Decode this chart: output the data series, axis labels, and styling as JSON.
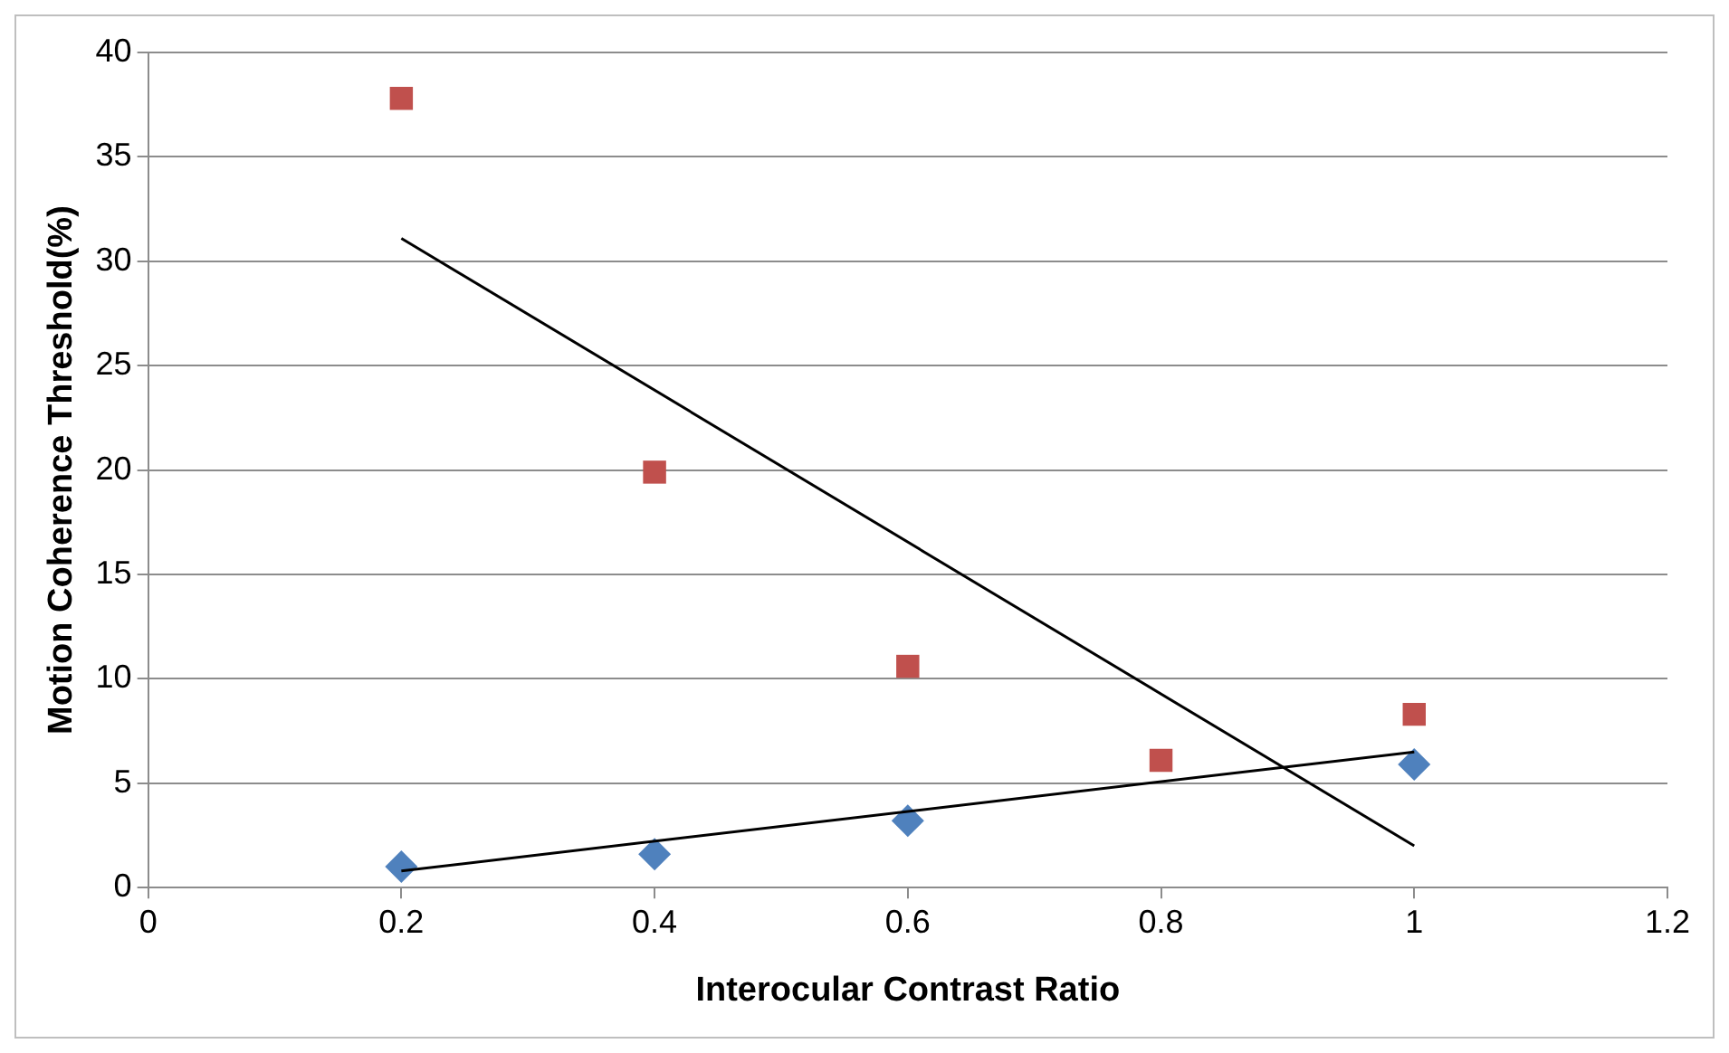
{
  "chart_data": {
    "type": "scatter",
    "xlabel": "Interocular Contrast Ratio",
    "ylabel": "Motion Coherence Threshold(%)",
    "xlim": [
      0,
      1.2
    ],
    "xticks": [
      0,
      0.2,
      0.4,
      0.6,
      0.8,
      1,
      1.2
    ],
    "ylim": [
      0,
      40
    ],
    "yticks": [
      0,
      5,
      10,
      15,
      20,
      25,
      30,
      35,
      40
    ],
    "grid": "y",
    "legend": false,
    "series": [
      {
        "color": "#4f81bd",
        "marker": "diamond",
        "x": [
          0.2,
          0.4,
          0.6,
          1
        ],
        "values": [
          1.0,
          1.6,
          3.2,
          5.9
        ]
      },
      {
        "color": "#c0504d",
        "marker": "square",
        "x": [
          0.2,
          0.4,
          0.6,
          0.8,
          1
        ],
        "values": [
          37.8,
          19.9,
          10.6,
          6.1,
          8.3
        ]
      },
      {
        "type": "line",
        "color": "#000000",
        "marker": "none",
        "line_style": "solid",
        "x": [
          0.2,
          1
        ],
        "values": [
          0.8,
          6.5
        ]
      },
      {
        "type": "line",
        "color": "#000000",
        "marker": "none",
        "line_style": "solid",
        "x": [
          0.2,
          1
        ],
        "values": [
          31.1,
          2.0
        ]
      }
    ]
  }
}
